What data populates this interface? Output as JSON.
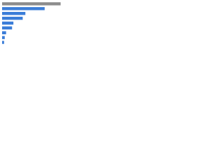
{
  "chart_data": {
    "type": "barh",
    "categories": [
      null,
      null,
      null,
      null,
      null,
      null,
      null,
      null,
      null
    ],
    "values": [
      88,
      64,
      35,
      31,
      17,
      15,
      6,
      4,
      3
    ],
    "colors": [
      "#8c8c8c",
      "#3b7dd8",
      "#3b7dd8",
      "#3b7dd8",
      "#3b7dd8",
      "#3b7dd8",
      "#3b7dd8",
      "#3b7dd8",
      "#3b7dd8"
    ],
    "xlim": [
      0,
      100
    ]
  }
}
